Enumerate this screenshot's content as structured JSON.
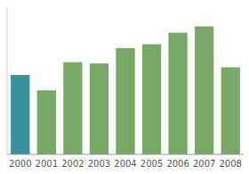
{
  "chart_data": {
    "type": "bar",
    "categories": [
      "2000",
      "2001",
      "2002",
      "2003",
      "2004",
      "2005",
      "2006",
      "2007",
      "2008"
    ],
    "values": [
      62,
      50,
      72,
      71,
      83,
      86,
      95,
      100,
      68
    ],
    "colors": [
      "#3a8f9e",
      "#77a865",
      "#77a865",
      "#77a865",
      "#77a865",
      "#77a865",
      "#77a865",
      "#77a865",
      "#77a865"
    ],
    "ylim": [
      0,
      115
    ],
    "grid": false,
    "tick_labels": "x"
  }
}
